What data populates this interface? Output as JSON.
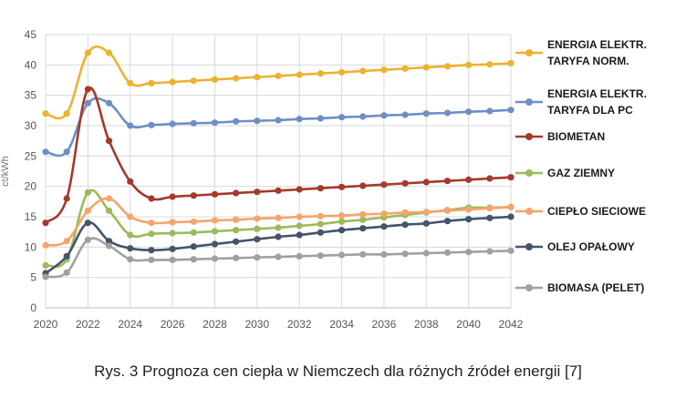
{
  "caption": "Rys. 3 Prognoza cen ciepła w Niemczech dla różnych źródeł energii [7]",
  "chart_data": {
    "type": "line",
    "ylim": [
      0,
      45
    ],
    "xlim": [
      2020,
      2042
    ],
    "x": [
      2020,
      2021,
      2022,
      2023,
      2024,
      2025,
      2026,
      2027,
      2028,
      2029,
      2030,
      2031,
      2032,
      2033,
      2034,
      2035,
      2036,
      2037,
      2038,
      2039,
      2040,
      2041,
      2042
    ],
    "x_ticks": [
      "2020",
      "2022",
      "2024",
      "2026",
      "2028",
      "2030",
      "2032",
      "2034",
      "2036",
      "2038",
      "2040",
      "2042"
    ],
    "y_ticks": [
      "0",
      "5",
      "10",
      "15",
      "20",
      "25",
      "30",
      "35",
      "40",
      "45"
    ],
    "grid": true,
    "legend_position": "right",
    "ylabel": "ct/kWh",
    "series": [
      {
        "name": "ENERGIA ELEKTR. TARYFA NORM.",
        "name_lines": [
          "ENERGIA ELEKTR.",
          "TARYFA NORM."
        ],
        "color": "#ecb22e",
        "values": [
          32,
          32,
          42,
          42,
          37,
          37,
          37.2,
          37.4,
          37.6,
          37.8,
          38,
          38.2,
          38.4,
          38.6,
          38.8,
          39,
          39.2,
          39.4,
          39.6,
          39.8,
          40,
          40.1,
          40.3
        ]
      },
      {
        "name": "ENERGIA ELEKTR. TARYFA DLA PC",
        "name_lines": [
          "ENERGIA ELEKTR.",
          "TARYFA  DLA PC"
        ],
        "color": "#6f8fc4",
        "values": [
          25.7,
          25.7,
          33.7,
          33.7,
          30,
          30.1,
          30.3,
          30.4,
          30.5,
          30.7,
          30.8,
          30.9,
          31.1,
          31.2,
          31.4,
          31.5,
          31.7,
          31.8,
          32,
          32.1,
          32.3,
          32.4,
          32.6
        ]
      },
      {
        "name": "BIOMETAN",
        "name_lines": [
          "BIOMETAN"
        ],
        "color": "#a33a2a",
        "values": [
          14,
          18,
          36,
          27.5,
          20.8,
          18,
          18.3,
          18.5,
          18.7,
          18.9,
          19.1,
          19.3,
          19.5,
          19.7,
          19.9,
          20.1,
          20.3,
          20.5,
          20.7,
          20.9,
          21.1,
          21.3,
          21.5
        ]
      },
      {
        "name": "GAZ ZIEMNY",
        "name_lines": [
          "GAZ ZIEMNY"
        ],
        "color": "#9bbb59",
        "values": [
          7,
          8,
          19,
          16,
          12,
          12.2,
          12.3,
          12.4,
          12.6,
          12.8,
          13,
          13.2,
          13.5,
          13.8,
          14.2,
          14.5,
          14.9,
          15.3,
          15.7,
          16.1,
          16.5,
          16.5,
          16.6
        ]
      },
      {
        "name": "CIEPŁO SIECIOWE",
        "name_lines": [
          "CIEPŁO SIECIOWE"
        ],
        "color": "#f4a46c",
        "values": [
          10.3,
          11,
          16,
          18,
          15,
          14,
          14.1,
          14.2,
          14.4,
          14.5,
          14.7,
          14.8,
          15,
          15.1,
          15.2,
          15.4,
          15.5,
          15.7,
          15.8,
          16,
          16.2,
          16.4,
          16.6
        ]
      },
      {
        "name": "OLEJ OPAŁOWY",
        "name_lines": [
          "OLEJ OPAŁOWY"
        ],
        "color": "#44546a",
        "values": [
          5.7,
          8.5,
          14,
          11,
          9.8,
          9.5,
          9.7,
          10.1,
          10.5,
          10.9,
          11.3,
          11.7,
          12,
          12.4,
          12.8,
          13.1,
          13.4,
          13.7,
          13.9,
          14.3,
          14.6,
          14.8,
          15
        ]
      },
      {
        "name": "BIOMASA  (PELET)",
        "name_lines": [
          "BIOMASA  (PELET)"
        ],
        "color": "#a0a0a0",
        "values": [
          5.1,
          5.8,
          11.2,
          10.2,
          8,
          7.9,
          7.9,
          8,
          8.1,
          8.2,
          8.3,
          8.4,
          8.5,
          8.6,
          8.7,
          8.8,
          8.8,
          8.9,
          9,
          9.1,
          9.2,
          9.3,
          9.4
        ]
      }
    ]
  }
}
